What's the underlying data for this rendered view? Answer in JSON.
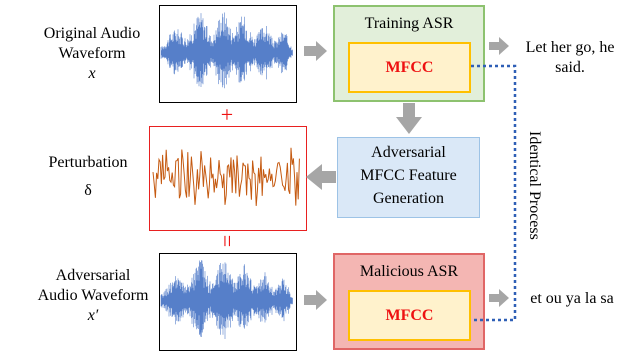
{
  "labels": {
    "original_line1": "Original Audio",
    "original_line2": "Waveform",
    "original_symbol": "x",
    "perturbation_line1": "Perturbation",
    "perturbation_symbol": "δ",
    "adversarial_line1": "Adversarial",
    "adversarial_line2": "Audio Waveform",
    "adversarial_symbol": "x′"
  },
  "operators": {
    "plus": "+",
    "equals": "="
  },
  "training_asr": {
    "title": "Training ASR",
    "feature": "MFCC",
    "output_line1": "Let her go, he",
    "output_line2": "said."
  },
  "generation": {
    "line1": "Adversarial",
    "line2": "MFCC Feature",
    "line3": "Generation"
  },
  "malicious_asr": {
    "title": "Malicious ASR",
    "feature": "MFCC",
    "output": "et ou ya la sa"
  },
  "identical_process": "Identical Process",
  "colors": {
    "waveform": "#4472c4",
    "perturbation": "#c55a11",
    "training_fill": "#e2efda",
    "training_border": "#8dc26f",
    "generation_fill": "#dae8f7",
    "generation_border": "#9dc3e6",
    "malicious_fill": "#f4b6b3",
    "malicious_border": "#e06666",
    "mfcc_fill": "#fff2cc",
    "mfcc_border": "#ffc000",
    "operator": "#ee1111",
    "arrow": "#a6a6a6",
    "dotted": "#2e5fb6"
  }
}
